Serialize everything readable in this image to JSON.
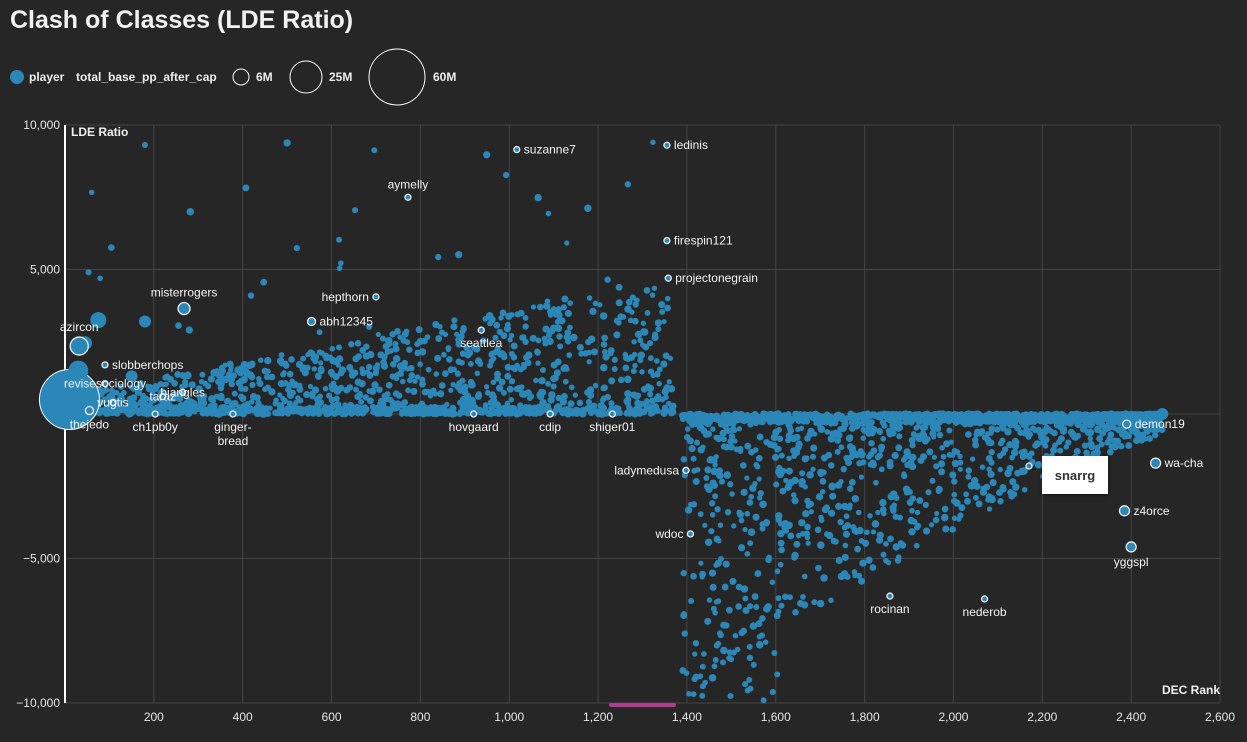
{
  "title": "Clash of Classes (LDE Ratio)",
  "legend": {
    "color_label": "player",
    "size_label": "total_base_pp_after_cap",
    "sizes": [
      {
        "label": "6M",
        "value": 6
      },
      {
        "label": "25M",
        "value": 25
      },
      {
        "label": "60M",
        "value": 60
      }
    ]
  },
  "tooltip": {
    "label": "snarrg"
  },
  "colors": {
    "point": "#2b87b8",
    "background": "#262626",
    "grid": "#444444",
    "highlight": "#eeeeee"
  },
  "chart_data": {
    "type": "scatter",
    "title": "Clash of Classes (LDE Ratio)",
    "xlabel": "DEC Rank",
    "ylabel": "LDE Ratio",
    "xlim": [
      0,
      2600
    ],
    "ylim": [
      -10000,
      10000
    ],
    "xticks": [
      200,
      400,
      600,
      800,
      1000,
      1200,
      1400,
      1600,
      1800,
      2000,
      2200,
      2400,
      2600
    ],
    "yticks": [
      10000,
      5000,
      0,
      -5000,
      -10000
    ],
    "ytick_labels": [
      "10,000",
      "5,000",
      "0",
      "−5,000",
      "−10,000"
    ],
    "xtick_labels": [
      "200",
      "400",
      "600",
      "800",
      "1,000",
      "1,200",
      "1,400",
      "1,600",
      "1,800",
      "2,000",
      "2,200",
      "2,400",
      "2,600"
    ],
    "grid": true,
    "labeled_points": [
      {
        "name": "ledinis",
        "x": 1355,
        "y": 9300,
        "pos": "right",
        "r": 3
      },
      {
        "name": "suzanne7",
        "x": 1017,
        "y": 9150,
        "pos": "right",
        "r": 3
      },
      {
        "name": "aymelly",
        "x": 772,
        "y": 7500,
        "pos": "above",
        "r": 3
      },
      {
        "name": "firespin121",
        "x": 1355,
        "y": 6000,
        "pos": "right",
        "r": 3
      },
      {
        "name": "projectonegrain",
        "x": 1358,
        "y": 4700,
        "pos": "right",
        "r": 3
      },
      {
        "name": "misterrogers",
        "x": 268,
        "y": 3650,
        "pos": "above",
        "r": 6
      },
      {
        "name": "hepthorn",
        "x": 700,
        "y": 4050,
        "pos": "left",
        "r": 3
      },
      {
        "name": "abh12345",
        "x": 555,
        "y": 3200,
        "pos": "right",
        "r": 4
      },
      {
        "name": "seattlea",
        "x": 937,
        "y": 2900,
        "pos": "below",
        "r": 3
      },
      {
        "name": "azircon",
        "x": 32,
        "y": 2350,
        "pos": "above",
        "r": 9
      },
      {
        "name": "slobberchops",
        "x": 90,
        "y": 1700,
        "pos": "right",
        "r": 3
      },
      {
        "name": "revisesociology",
        "x": 90,
        "y": 1050,
        "pos": "center",
        "r": 3
      },
      {
        "name": "bjangles",
        "x": 265,
        "y": 750,
        "pos": "center",
        "r": 3
      },
      {
        "name": "taraz",
        "x": 220,
        "y": 600,
        "pos": "center",
        "r": 3
      },
      {
        "name": "vugtis",
        "x": 108,
        "y": 400,
        "pos": "center",
        "r": 3
      },
      {
        "name": "thejedo",
        "x": 55,
        "y": 120,
        "pos": "below",
        "r": 4
      },
      {
        "name": "ch1pb0y",
        "x": 203,
        "y": 0,
        "pos": "below",
        "r": 3
      },
      {
        "name": "ginger-bread",
        "x": 378,
        "y": 0,
        "pos": "below2",
        "r": 3
      },
      {
        "name": "hovgaard",
        "x": 920,
        "y": 0,
        "pos": "below",
        "r": 3
      },
      {
        "name": "cdip",
        "x": 1092,
        "y": 0,
        "pos": "below",
        "r": 3
      },
      {
        "name": "shiger01",
        "x": 1232,
        "y": 0,
        "pos": "below",
        "r": 3
      },
      {
        "name": "ladymedusa",
        "x": 1398,
        "y": -1950,
        "pos": "left",
        "r": 3
      },
      {
        "name": "wdoc",
        "x": 1408,
        "y": -4150,
        "pos": "left",
        "r": 3
      },
      {
        "name": "rocinan",
        "x": 1857,
        "y": -6300,
        "pos": "below",
        "r": 3
      },
      {
        "name": "nederob",
        "x": 2070,
        "y": -6400,
        "pos": "below",
        "r": 3
      },
      {
        "name": "demon19",
        "x": 2390,
        "y": -350,
        "pos": "right",
        "r": 4
      },
      {
        "name": "wa-cha",
        "x": 2455,
        "y": -1700,
        "pos": "right",
        "r": 5
      },
      {
        "name": "z4orce",
        "x": 2385,
        "y": -3350,
        "pos": "right",
        "r": 5
      },
      {
        "name": "yggspl",
        "x": 2400,
        "y": -4600,
        "pos": "below",
        "r": 5
      },
      {
        "name": "snarrg",
        "x": 2170,
        "y": -1800,
        "pos": "tooltip",
        "r": 3
      }
    ],
    "big_points": [
      {
        "x": 10,
        "y": 500,
        "r": 30
      },
      {
        "x": 30,
        "y": 1500,
        "r": 10
      },
      {
        "x": 75,
        "y": 3250,
        "r": 8
      },
      {
        "x": 45,
        "y": 2450,
        "r": 7
      },
      {
        "x": 150,
        "y": 1300,
        "r": 6
      },
      {
        "x": 180,
        "y": 3200,
        "r": 6
      },
      {
        "x": 2470,
        "y": 0,
        "r": 6
      }
    ]
  }
}
